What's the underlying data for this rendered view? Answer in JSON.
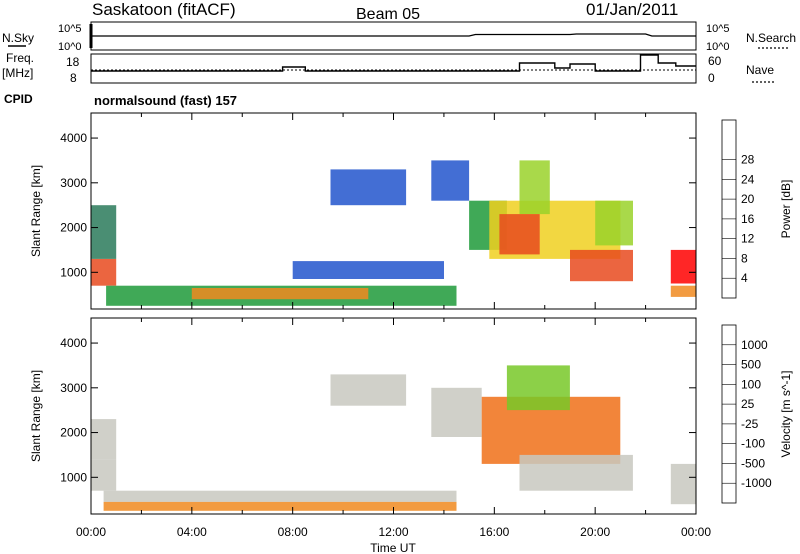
{
  "header": {
    "station": "Saskatoon (fitACF)",
    "beam": "Beam 05",
    "date": "01/Jan/2011"
  },
  "left_labels": {
    "nsky": "N.Sky",
    "freq": "Freq.",
    "freq_unit": "[MHz]",
    "cpid": "CPID"
  },
  "right_labels": {
    "nsearch": "N.Search",
    "nave": "Nave"
  },
  "noise_axis": {
    "top": "10^5",
    "bottom": "10^0",
    "right_top": "10^5",
    "right_bottom": "10^0"
  },
  "freq_axis": {
    "top": "18",
    "bottom": "8",
    "right_top": "60",
    "right_bottom": "0"
  },
  "cpid_text": "normalsound (fast) 157",
  "xaxis": {
    "title": "Time UT",
    "ticks": [
      "00:00",
      "04:00",
      "08:00",
      "12:00",
      "16:00",
      "20:00",
      "00:00"
    ]
  },
  "chart_data": [
    {
      "type": "heatmap",
      "name": "power",
      "xlabel": "Time UT",
      "ylabel": "Slant Range [km]",
      "ylim": [
        180,
        4560
      ],
      "xlim": [
        0,
        24
      ],
      "yticks": [
        1000,
        2000,
        3000,
        4000
      ],
      "colorbar": {
        "label": "Power [dB]",
        "ticks": [
          "4",
          "8",
          "12",
          "16",
          "20",
          "24",
          "28"
        ],
        "colors": [
          "#0000ff",
          "#2255cc",
          "#2a7a5a",
          "#1f9a3a",
          "#9ad22a",
          "#f0d020",
          "#f08a20",
          "#e84a1e",
          "#ff0000"
        ]
      },
      "regions": [
        {
          "t0": 0.0,
          "t1": 1.0,
          "r0": 700,
          "r1": 1300,
          "level": 7
        },
        {
          "t0": 0.0,
          "t1": 1.0,
          "r0": 1300,
          "r1": 2500,
          "level": 2
        },
        {
          "t0": 0.6,
          "t1": 14.5,
          "r0": 250,
          "r1": 700,
          "level": 3
        },
        {
          "t0": 4.0,
          "t1": 11.0,
          "r0": 400,
          "r1": 650,
          "level": 6
        },
        {
          "t0": 8.0,
          "t1": 14.0,
          "r0": 850,
          "r1": 1250,
          "level": 1
        },
        {
          "t0": 9.5,
          "t1": 12.5,
          "r0": 2500,
          "r1": 3300,
          "level": 1
        },
        {
          "t0": 13.5,
          "t1": 15.0,
          "r0": 2600,
          "r1": 3500,
          "level": 1
        },
        {
          "t0": 15.0,
          "t1": 16.5,
          "r0": 1500,
          "r1": 2600,
          "level": 3
        },
        {
          "t0": 15.8,
          "t1": 21.0,
          "r0": 1300,
          "r1": 2600,
          "level": 5
        },
        {
          "t0": 17.0,
          "t1": 18.2,
          "r0": 2300,
          "r1": 3500,
          "level": 4
        },
        {
          "t0": 16.2,
          "t1": 17.8,
          "r0": 1400,
          "r1": 2300,
          "level": 7
        },
        {
          "t0": 19.0,
          "t1": 21.5,
          "r0": 800,
          "r1": 1500,
          "level": 7
        },
        {
          "t0": 20.0,
          "t1": 21.5,
          "r0": 1600,
          "r1": 2600,
          "level": 4
        },
        {
          "t0": 23.0,
          "t1": 24.0,
          "r0": 750,
          "r1": 1500,
          "level": 8
        },
        {
          "t0": 23.0,
          "t1": 24.0,
          "r0": 450,
          "r1": 700,
          "level": 6
        }
      ]
    },
    {
      "type": "heatmap",
      "name": "velocity",
      "xlabel": "Time UT",
      "ylabel": "Slant Range [km]",
      "ylim": [
        180,
        4560
      ],
      "xlim": [
        0,
        24
      ],
      "yticks": [
        1000,
        2000,
        3000,
        4000
      ],
      "colorbar": {
        "label": "Velocity [m s^-1]",
        "ticks": [
          "1000",
          "500",
          "100",
          "25",
          "-25",
          "-100",
          "-500",
          "-1000"
        ],
        "colors": [
          "#2040c0",
          "#2a7a5a",
          "#1f9a3a",
          "#78c828",
          "#c8c8c0",
          "#f08a20",
          "#f07018",
          "#f04018",
          "#ff0000"
        ]
      },
      "regions": [
        {
          "t0": 0.0,
          "t1": 1.0,
          "r0": 700,
          "r1": 1400,
          "level": 4
        },
        {
          "t0": 0.0,
          "t1": 1.0,
          "r0": 1400,
          "r1": 2300,
          "level": 4
        },
        {
          "t0": 0.5,
          "t1": 14.5,
          "r0": 450,
          "r1": 700,
          "level": 4
        },
        {
          "t0": 0.5,
          "t1": 14.5,
          "r0": 250,
          "r1": 450,
          "level": 5
        },
        {
          "t0": 9.5,
          "t1": 12.5,
          "r0": 2600,
          "r1": 3300,
          "level": 4
        },
        {
          "t0": 13.5,
          "t1": 15.5,
          "r0": 1900,
          "r1": 3000,
          "level": 4
        },
        {
          "t0": 15.5,
          "t1": 21.0,
          "r0": 1300,
          "r1": 2800,
          "level": 6
        },
        {
          "t0": 16.5,
          "t1": 19.0,
          "r0": 2500,
          "r1": 3500,
          "level": 3
        },
        {
          "t0": 17.0,
          "t1": 21.5,
          "r0": 700,
          "r1": 1500,
          "level": 4
        },
        {
          "t0": 23.0,
          "t1": 24.0,
          "r0": 400,
          "r1": 1300,
          "level": 4
        }
      ]
    }
  ]
}
